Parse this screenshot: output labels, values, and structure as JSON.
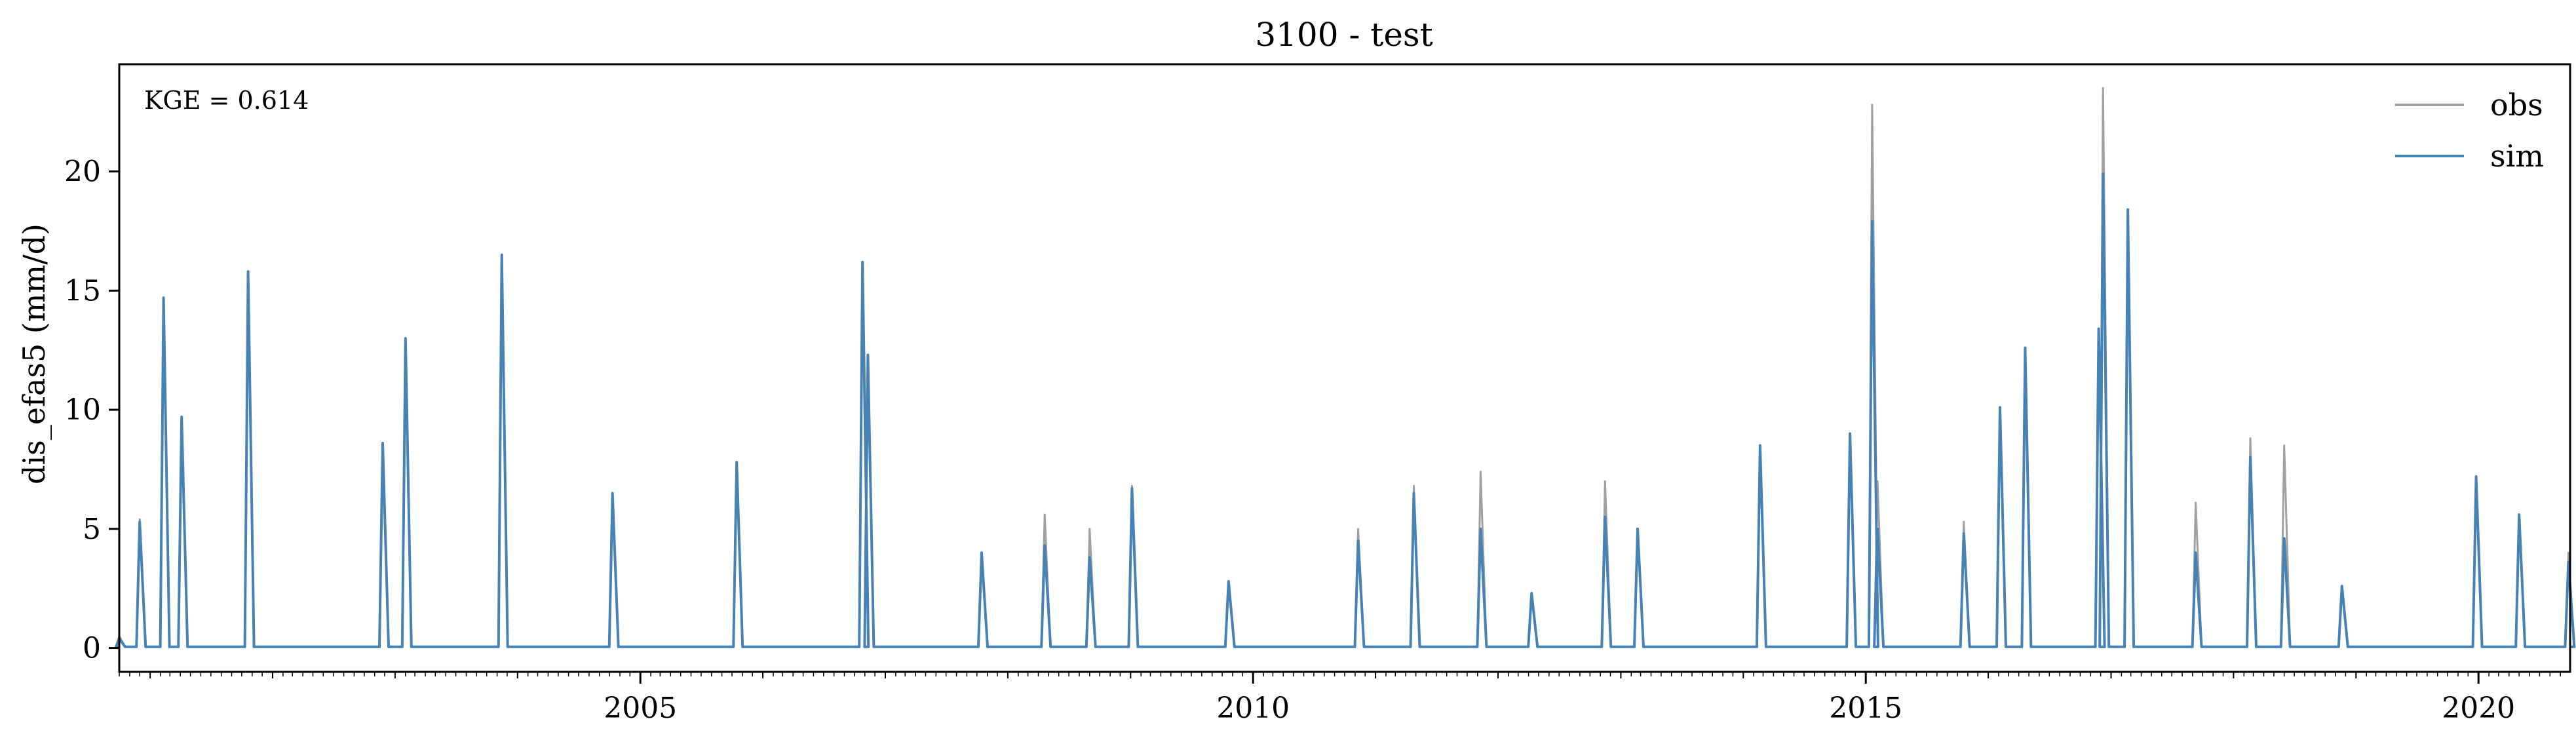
{
  "chart_data": {
    "type": "line",
    "title": "3100 - test",
    "xlabel": "",
    "ylabel": "dis_efas5 (mm/d)",
    "xlim": [
      "2000-10-01",
      "2020-09-30"
    ],
    "ylim": [
      -1,
      24.5
    ],
    "x_ticks": [
      {
        "date": "2005-01-01",
        "label": "2005"
      },
      {
        "date": "2010-01-01",
        "label": "2010"
      },
      {
        "date": "2015-01-01",
        "label": "2015"
      },
      {
        "date": "2020-01-01",
        "label": "2020"
      }
    ],
    "y_ticks": [
      0,
      5,
      10,
      15,
      20
    ],
    "grid": false,
    "legend_position": "top-right",
    "annotation": "KGE = 0.614",
    "series": [
      {
        "name": "obs",
        "color": "#a0a0a0",
        "points": [
          [
            "2000-10-01",
            0.5
          ],
          [
            "2000-12-01",
            5.4
          ],
          [
            "2001-02-10",
            14.7
          ],
          [
            "2001-04-05",
            9.7
          ],
          [
            "2001-10-20",
            15.8
          ],
          [
            "2002-11-25",
            8.6
          ],
          [
            "2003-02-01",
            13.0
          ],
          [
            "2003-11-15",
            16.5
          ],
          [
            "2004-10-10",
            6.5
          ],
          [
            "2005-10-15",
            7.8
          ],
          [
            "2006-10-25",
            16.2
          ],
          [
            "2006-11-10",
            12.3
          ],
          [
            "2007-10-15",
            4.0
          ],
          [
            "2008-04-20",
            5.6
          ],
          [
            "2008-09-01",
            5.0
          ],
          [
            "2009-01-05",
            6.8
          ],
          [
            "2009-10-20",
            2.8
          ],
          [
            "2010-11-10",
            5.0
          ],
          [
            "2011-04-25",
            6.8
          ],
          [
            "2011-11-10",
            7.4
          ],
          [
            "2012-04-10",
            2.3
          ],
          [
            "2012-11-15",
            7.0
          ],
          [
            "2013-02-20",
            5.0
          ],
          [
            "2014-02-20",
            8.5
          ],
          [
            "2014-11-15",
            9.0
          ],
          [
            "2015-01-20",
            22.8
          ],
          [
            "2015-02-05",
            7.0
          ],
          [
            "2015-10-20",
            5.3
          ],
          [
            "2016-02-05",
            10.1
          ],
          [
            "2016-04-20",
            12.6
          ],
          [
            "2016-11-25",
            13.4
          ],
          [
            "2016-12-08",
            23.5
          ],
          [
            "2017-02-20",
            18.4
          ],
          [
            "2017-09-10",
            6.1
          ],
          [
            "2018-02-20",
            8.8
          ],
          [
            "2018-06-01",
            8.5
          ],
          [
            "2018-11-20",
            2.6
          ],
          [
            "2019-12-25",
            7.2
          ],
          [
            "2020-05-01",
            5.6
          ],
          [
            "2020-09-25",
            4.0
          ]
        ]
      },
      {
        "name": "sim",
        "color": "#4682b4",
        "points": [
          [
            "2000-10-01",
            0.4
          ],
          [
            "2000-12-01",
            5.3
          ],
          [
            "2001-02-10",
            14.7
          ],
          [
            "2001-04-05",
            9.7
          ],
          [
            "2001-10-20",
            15.8
          ],
          [
            "2002-11-25",
            8.6
          ],
          [
            "2003-02-01",
            13.0
          ],
          [
            "2003-11-15",
            16.5
          ],
          [
            "2004-10-10",
            6.5
          ],
          [
            "2005-10-15",
            7.8
          ],
          [
            "2006-10-25",
            16.2
          ],
          [
            "2006-11-10",
            12.3
          ],
          [
            "2007-10-15",
            4.0
          ],
          [
            "2008-04-20",
            4.3
          ],
          [
            "2008-09-01",
            3.8
          ],
          [
            "2009-01-05",
            6.7
          ],
          [
            "2009-10-20",
            2.8
          ],
          [
            "2010-11-10",
            4.5
          ],
          [
            "2011-04-25",
            6.5
          ],
          [
            "2011-11-10",
            5.0
          ],
          [
            "2012-04-10",
            2.3
          ],
          [
            "2012-11-15",
            5.5
          ],
          [
            "2013-02-20",
            5.0
          ],
          [
            "2014-02-20",
            8.5
          ],
          [
            "2014-11-15",
            9.0
          ],
          [
            "2015-01-20",
            17.9
          ],
          [
            "2015-02-05",
            5.0
          ],
          [
            "2015-10-20",
            4.8
          ],
          [
            "2016-02-05",
            10.1
          ],
          [
            "2016-04-20",
            12.6
          ],
          [
            "2016-11-25",
            13.4
          ],
          [
            "2016-12-08",
            19.9
          ],
          [
            "2017-02-20",
            18.4
          ],
          [
            "2017-09-10",
            4.0
          ],
          [
            "2018-02-20",
            8.0
          ],
          [
            "2018-06-01",
            4.6
          ],
          [
            "2018-11-20",
            2.6
          ],
          [
            "2019-12-25",
            7.2
          ],
          [
            "2020-05-01",
            5.6
          ],
          [
            "2020-09-25",
            3.6
          ]
        ]
      }
    ]
  }
}
